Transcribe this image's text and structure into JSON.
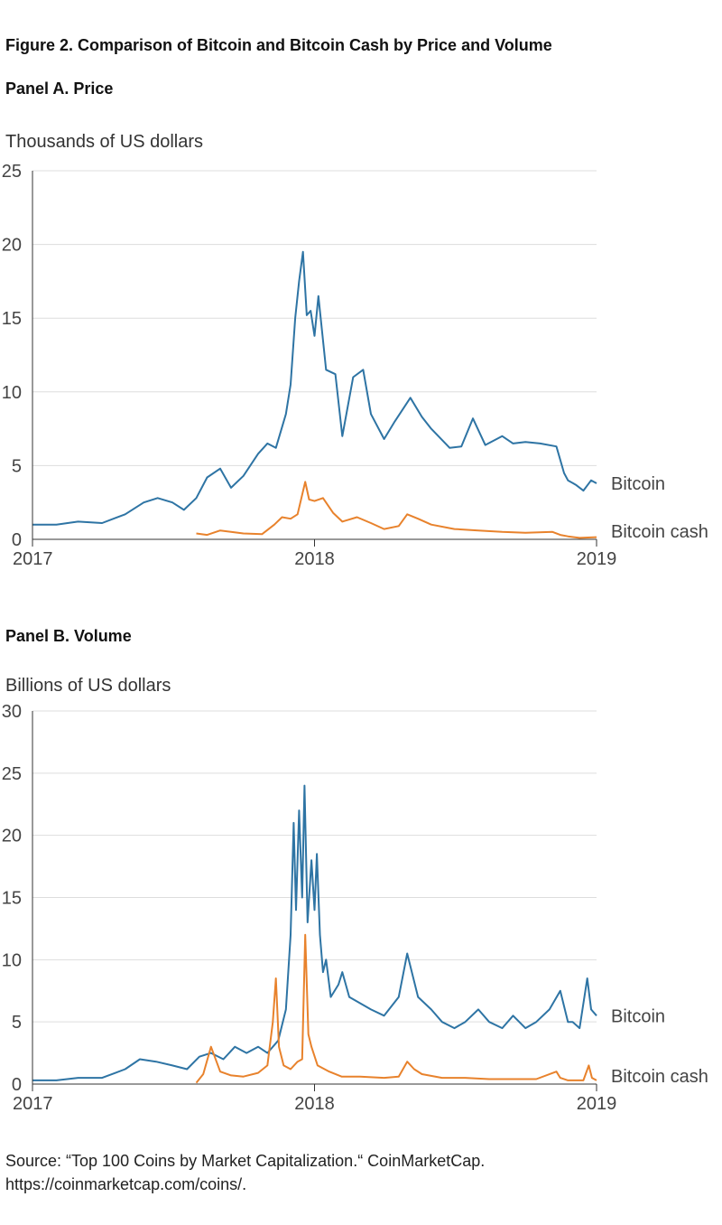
{
  "figure": {
    "title": "Figure 2.   Comparison of Bitcoin and Bitcoin Cash by Price and Volume",
    "source_line1": "Source: “Top 100 Coins by Market Capitalization.“ CoinMarketCap.",
    "source_line2": "https://coinmarketcap.com/coins/."
  },
  "colors": {
    "bitcoin": "#2e74a4",
    "bitcoin_cash": "#e8822c",
    "grid": "#dddddd",
    "axis": "#333333"
  },
  "chart_data": [
    {
      "type": "line",
      "panel_title": "Panel A. Price",
      "ylabel": "Thousands of US dollars",
      "xlim": [
        "2017-01-01",
        "2019-01-01"
      ],
      "ylim": [
        0,
        25
      ],
      "yticks": [
        0,
        5,
        10,
        15,
        20,
        25
      ],
      "xticks": [
        {
          "label": "2017",
          "value": "2017-01-01"
        },
        {
          "label": "2018",
          "value": "2018-01-01"
        },
        {
          "label": "2019",
          "value": "2019-01-01"
        }
      ],
      "grid": true,
      "series": [
        {
          "name": "Bitcoin",
          "color": "#2e74a4",
          "x": [
            "2017-01-01",
            "2017-02-01",
            "2017-03-01",
            "2017-04-01",
            "2017-05-01",
            "2017-05-25",
            "2017-06-12",
            "2017-07-01",
            "2017-07-16",
            "2017-08-01",
            "2017-08-15",
            "2017-09-01",
            "2017-09-15",
            "2017-10-01",
            "2017-10-20",
            "2017-11-01",
            "2017-11-12",
            "2017-11-25",
            "2017-12-01",
            "2017-12-07",
            "2017-12-12",
            "2017-12-17",
            "2017-12-22",
            "2017-12-27",
            "2018-01-01",
            "2018-01-06",
            "2018-01-16",
            "2018-01-28",
            "2018-02-06",
            "2018-02-20",
            "2018-03-05",
            "2018-03-15",
            "2018-04-01",
            "2018-04-15",
            "2018-05-05",
            "2018-05-20",
            "2018-06-01",
            "2018-06-25",
            "2018-07-10",
            "2018-07-25",
            "2018-08-10",
            "2018-09-01",
            "2018-09-15",
            "2018-10-01",
            "2018-10-20",
            "2018-11-10",
            "2018-11-20",
            "2018-11-25",
            "2018-12-05",
            "2018-12-15",
            "2018-12-25",
            "2019-01-01"
          ],
          "y": [
            1.0,
            1.0,
            1.2,
            1.1,
            1.7,
            2.5,
            2.8,
            2.5,
            2.0,
            2.8,
            4.2,
            4.8,
            3.5,
            4.3,
            5.8,
            6.5,
            6.2,
            8.5,
            10.5,
            15.0,
            17.5,
            19.5,
            15.2,
            15.5,
            13.8,
            16.5,
            11.5,
            11.2,
            7.0,
            11.0,
            11.5,
            8.5,
            6.8,
            8.0,
            9.6,
            8.3,
            7.5,
            6.2,
            6.3,
            8.2,
            6.4,
            7.0,
            6.5,
            6.6,
            6.5,
            6.3,
            4.5,
            4.0,
            3.7,
            3.3,
            4.0,
            3.8
          ]
        },
        {
          "name": "Bitcoin cash",
          "color": "#e8822c",
          "x": [
            "2017-08-01",
            "2017-08-15",
            "2017-09-01",
            "2017-09-15",
            "2017-10-01",
            "2017-10-25",
            "2017-11-10",
            "2017-11-20",
            "2017-12-01",
            "2017-12-10",
            "2017-12-20",
            "2017-12-25",
            "2018-01-01",
            "2018-01-12",
            "2018-01-25",
            "2018-02-06",
            "2018-02-25",
            "2018-03-15",
            "2018-04-01",
            "2018-04-20",
            "2018-05-01",
            "2018-05-15",
            "2018-06-01",
            "2018-07-01",
            "2018-08-01",
            "2018-09-01",
            "2018-10-01",
            "2018-11-05",
            "2018-11-15",
            "2018-11-25",
            "2018-12-10",
            "2019-01-01"
          ],
          "y": [
            0.4,
            0.3,
            0.6,
            0.5,
            0.4,
            0.35,
            1.0,
            1.5,
            1.4,
            1.7,
            3.9,
            2.7,
            2.6,
            2.8,
            1.8,
            1.2,
            1.5,
            1.1,
            0.7,
            0.9,
            1.7,
            1.4,
            1.0,
            0.7,
            0.6,
            0.5,
            0.45,
            0.5,
            0.3,
            0.2,
            0.1,
            0.15
          ]
        }
      ]
    },
    {
      "type": "line",
      "panel_title": "Panel B. Volume",
      "ylabel": "Billions of US dollars",
      "xlim": [
        "2017-01-01",
        "2019-01-01"
      ],
      "ylim": [
        0,
        30
      ],
      "yticks": [
        0,
        5,
        10,
        15,
        20,
        25,
        30
      ],
      "xticks": [
        {
          "label": "2017",
          "value": "2017-01-01"
        },
        {
          "label": "2018",
          "value": "2018-01-01"
        },
        {
          "label": "2019",
          "value": "2019-01-01"
        }
      ],
      "grid": true,
      "series": [
        {
          "name": "Bitcoin",
          "color": "#2e74a4",
          "x": [
            "2017-01-01",
            "2017-02-01",
            "2017-03-01",
            "2017-04-01",
            "2017-05-01",
            "2017-05-20",
            "2017-06-10",
            "2017-07-01",
            "2017-07-20",
            "2017-08-05",
            "2017-08-20",
            "2017-09-05",
            "2017-09-20",
            "2017-10-05",
            "2017-10-20",
            "2017-11-01",
            "2017-11-15",
            "2017-11-25",
            "2017-12-01",
            "2017-12-05",
            "2017-12-08",
            "2017-12-12",
            "2017-12-16",
            "2017-12-19",
            "2017-12-23",
            "2017-12-28",
            "2018-01-01",
            "2018-01-04",
            "2018-01-08",
            "2018-01-12",
            "2018-01-16",
            "2018-01-22",
            "2018-02-01",
            "2018-02-06",
            "2018-02-15",
            "2018-03-01",
            "2018-03-15",
            "2018-04-01",
            "2018-04-20",
            "2018-05-01",
            "2018-05-15",
            "2018-06-01",
            "2018-06-15",
            "2018-07-01",
            "2018-07-15",
            "2018-08-01",
            "2018-08-15",
            "2018-09-01",
            "2018-09-15",
            "2018-10-01",
            "2018-10-15",
            "2018-11-01",
            "2018-11-15",
            "2018-11-25",
            "2018-12-01",
            "2018-12-10",
            "2018-12-20",
            "2018-12-25",
            "2019-01-01"
          ],
          "y": [
            0.3,
            0.3,
            0.5,
            0.5,
            1.2,
            2.0,
            1.8,
            1.5,
            1.2,
            2.2,
            2.5,
            2.0,
            3.0,
            2.5,
            3.0,
            2.5,
            3.5,
            6.0,
            12.0,
            21.0,
            14.0,
            22.0,
            15.0,
            24.0,
            13.0,
            18.0,
            14.0,
            18.5,
            12.0,
            9.0,
            10.0,
            7.0,
            8.0,
            9.0,
            7.0,
            6.5,
            6.0,
            5.5,
            7.0,
            10.5,
            7.0,
            6.0,
            5.0,
            4.5,
            5.0,
            6.0,
            5.0,
            4.5,
            5.5,
            4.5,
            5.0,
            6.0,
            7.5,
            5.0,
            5.0,
            4.5,
            8.5,
            6.0,
            5.5
          ]
        },
        {
          "name": "Bitcoin cash",
          "color": "#e8822c",
          "x": [
            "2017-08-01",
            "2017-08-10",
            "2017-08-20",
            "2017-09-01",
            "2017-09-15",
            "2017-10-01",
            "2017-10-20",
            "2017-11-01",
            "2017-11-08",
            "2017-11-12",
            "2017-11-16",
            "2017-11-22",
            "2017-12-01",
            "2017-12-10",
            "2017-12-16",
            "2017-12-20",
            "2017-12-24",
            "2017-12-28",
            "2018-01-05",
            "2018-01-20",
            "2018-02-05",
            "2018-03-01",
            "2018-04-01",
            "2018-04-20",
            "2018-05-01",
            "2018-05-10",
            "2018-05-20",
            "2018-06-15",
            "2018-07-15",
            "2018-08-15",
            "2018-09-15",
            "2018-10-15",
            "2018-11-10",
            "2018-11-15",
            "2018-11-25",
            "2018-12-05",
            "2018-12-15",
            "2018-12-22",
            "2018-12-26",
            "2019-01-01"
          ],
          "y": [
            0.1,
            0.8,
            3.0,
            1.0,
            0.7,
            0.6,
            0.9,
            1.5,
            5.0,
            8.5,
            3.0,
            1.5,
            1.2,
            1.8,
            2.0,
            12.0,
            4.0,
            3.0,
            1.5,
            1.0,
            0.6,
            0.6,
            0.5,
            0.6,
            1.8,
            1.2,
            0.8,
            0.5,
            0.5,
            0.4,
            0.4,
            0.4,
            1.0,
            0.5,
            0.3,
            0.3,
            0.3,
            1.5,
            0.5,
            0.3
          ]
        }
      ]
    }
  ]
}
